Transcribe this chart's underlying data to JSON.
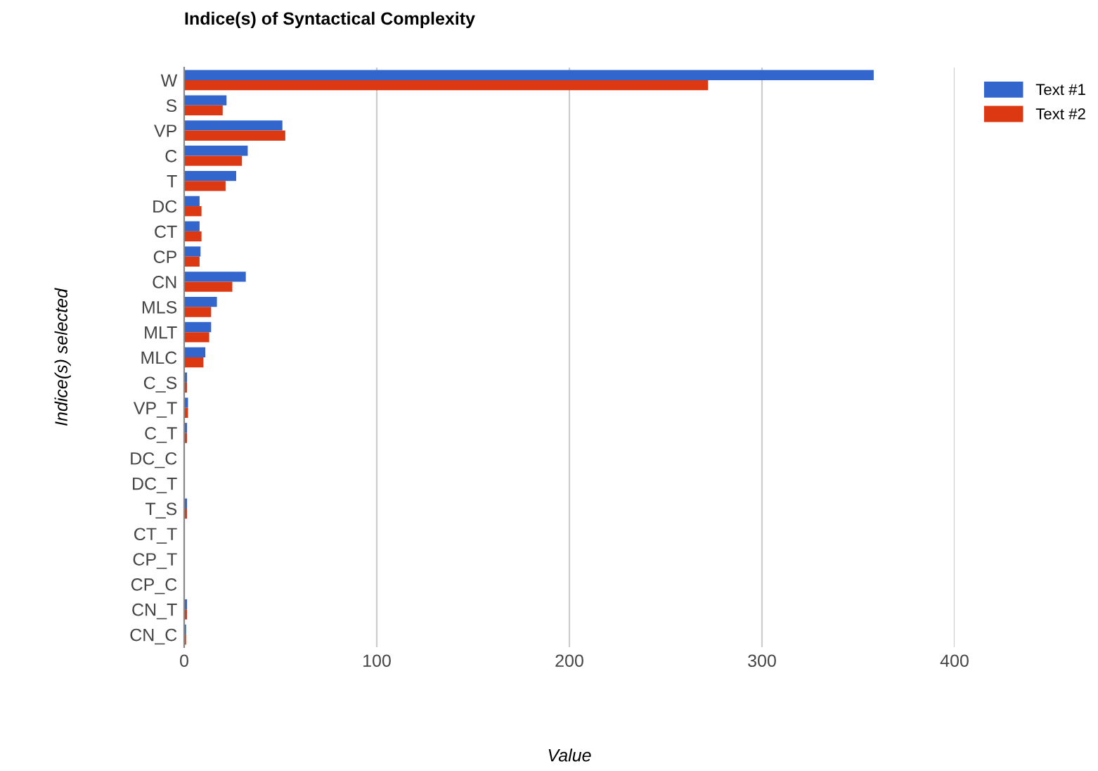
{
  "chart_data": {
    "type": "bar",
    "orientation": "horizontal",
    "title": "Indice(s) of Syntactical Complexity",
    "xlabel": "Value",
    "ylabel": "Indice(s) selected",
    "categories": [
      "W",
      "S",
      "VP",
      "C",
      "T",
      "DC",
      "CT",
      "CP",
      "CN",
      "MLS",
      "MLT",
      "MLC",
      "C_S",
      "VP_T",
      "C_T",
      "DC_C",
      "DC_T",
      "T_S",
      "CT_T",
      "CP_T",
      "CP_C",
      "CN_T",
      "CN_C"
    ],
    "series": [
      {
        "name": "Text #1",
        "color": "#3366cc",
        "values": [
          358,
          22,
          51,
          33,
          27,
          8,
          8,
          8.5,
          32,
          17,
          14,
          11,
          1.5,
          2,
          1.5,
          0.3,
          0.3,
          1.5,
          0.3,
          0.3,
          0.3,
          1.5,
          1
        ]
      },
      {
        "name": "Text #2",
        "color": "#dc3912",
        "values": [
          272,
          20,
          52.5,
          30,
          21.5,
          9,
          9,
          8,
          25,
          14,
          13,
          10,
          1.5,
          2,
          1.5,
          0.3,
          0.3,
          1.5,
          0.3,
          0.3,
          0.3,
          1.5,
          1
        ]
      }
    ],
    "xlim": [
      0,
      400
    ],
    "xticks": [
      0,
      100,
      200,
      300,
      400
    ],
    "grid": "x",
    "legend": "top right"
  }
}
